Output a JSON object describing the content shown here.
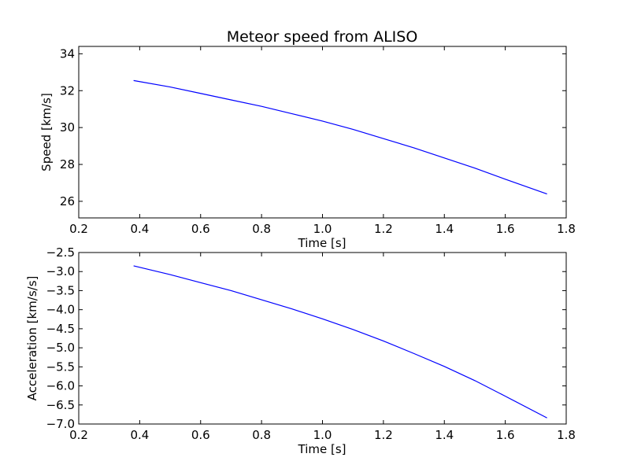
{
  "chart_data": [
    {
      "type": "line",
      "title": "Meteor speed from  ALISO",
      "xlabel": "Time [s]",
      "ylabel": "Speed [km/s]",
      "xlim": [
        0.2,
        1.8
      ],
      "ylim": [
        25.1,
        34.4
      ],
      "x_ticks": [
        0.2,
        0.4,
        0.6,
        0.8,
        1.0,
        1.2,
        1.4,
        1.6,
        1.8
      ],
      "y_ticks": [
        26,
        28,
        30,
        32,
        34
      ],
      "x_tick_labels": [
        "0.2",
        "0.4",
        "0.6",
        "0.8",
        "1.0",
        "1.2",
        "1.4",
        "1.6",
        "1.8"
      ],
      "y_tick_labels": [
        "26",
        "28",
        "30",
        "32",
        "34"
      ],
      "grid": false,
      "series": [
        {
          "color": "#0000ff",
          "x": [
            0.38,
            0.5,
            0.6,
            0.7,
            0.8,
            0.9,
            1.0,
            1.1,
            1.2,
            1.3,
            1.4,
            1.5,
            1.6,
            1.737
          ],
          "y": [
            32.55,
            32.2,
            31.85,
            31.5,
            31.15,
            30.75,
            30.35,
            29.9,
            29.4,
            28.9,
            28.35,
            27.8,
            27.2,
            26.4
          ]
        }
      ]
    },
    {
      "type": "line",
      "title": "",
      "xlabel": "Time [s]",
      "ylabel": "Acceleration [km/s/s]",
      "xlim": [
        0.2,
        1.8
      ],
      "ylim": [
        -7.0,
        -2.5
      ],
      "x_ticks": [
        0.2,
        0.4,
        0.6,
        0.8,
        1.0,
        1.2,
        1.4,
        1.6,
        1.8
      ],
      "y_ticks": [
        -7.0,
        -6.5,
        -6.0,
        -5.5,
        -5.0,
        -4.5,
        -4.0,
        -3.5,
        -3.0,
        -2.5
      ],
      "x_tick_labels": [
        "0.2",
        "0.4",
        "0.6",
        "0.8",
        "1.0",
        "1.2",
        "1.4",
        "1.6",
        "1.8"
      ],
      "y_tick_labels": [
        "−7.0",
        "−6.5",
        "−6.0",
        "−5.5",
        "−5.0",
        "−4.5",
        "−4.0",
        "−3.5",
        "−3.0",
        "−2.5"
      ],
      "grid": false,
      "series": [
        {
          "color": "#0000ff",
          "x": [
            0.38,
            0.5,
            0.6,
            0.7,
            0.8,
            0.9,
            1.0,
            1.1,
            1.2,
            1.3,
            1.4,
            1.5,
            1.6,
            1.737
          ],
          "y": [
            -2.85,
            -3.08,
            -3.29,
            -3.5,
            -3.74,
            -3.98,
            -4.24,
            -4.52,
            -4.82,
            -5.15,
            -5.49,
            -5.86,
            -6.27,
            -6.84
          ]
        }
      ]
    }
  ]
}
